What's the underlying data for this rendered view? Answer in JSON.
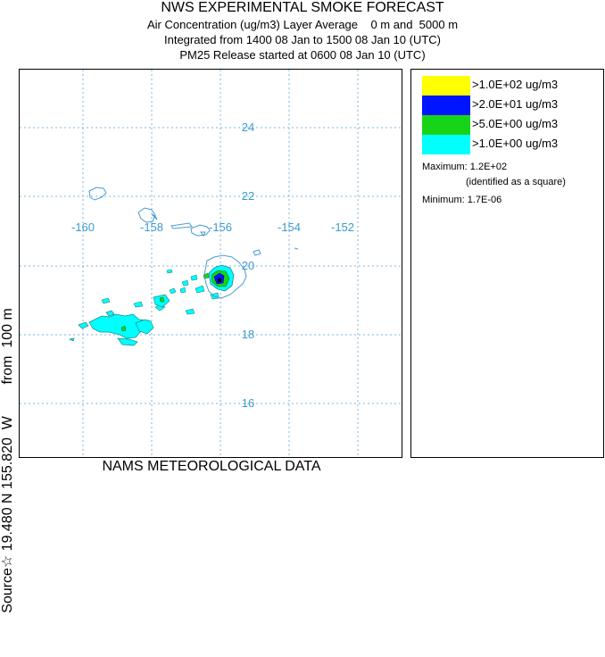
{
  "header": {
    "title": "NWS EXPERIMENTAL SMOKE FORECAST",
    "line2": "Air Concentration (ug/m3) Layer Average    0 m and  5000 m",
    "line3": "Integrated from 1400 08 Jan to 1500 08 Jan 10 (UTC)",
    "line4": "PM25 Release started at 0600 08 Jan 10 (UTC)"
  },
  "side_label": "Source☆ 19.480 N 155.820  W        from  100 m",
  "bottom_label": "NAMS METEOROLOGICAL DATA",
  "map": {
    "longitude_labels": [
      "-160",
      "-158",
      "-156",
      "-154",
      "-152"
    ],
    "latitude_labels": [
      "24",
      "22",
      "20",
      "18",
      "16"
    ],
    "grid_color": "#7fb6db",
    "coast_color": "#4a9cd0"
  },
  "legend": {
    "items": [
      {
        "label": ">1.0E+02 ug/m3",
        "color": "#ffff00"
      },
      {
        "label": ">2.0E+01 ug/m3",
        "color": "#0015ff"
      },
      {
        "label": ">5.0E+00 ug/m3",
        "color": "#18d418"
      },
      {
        "label": ">1.0E+00 ug/m3",
        "color": "#00ffff"
      }
    ],
    "maximum": "Maximum: 1.2E+02",
    "maximum_note": "(identified as a square)",
    "minimum": "Minimum: 1.7E-06"
  }
}
